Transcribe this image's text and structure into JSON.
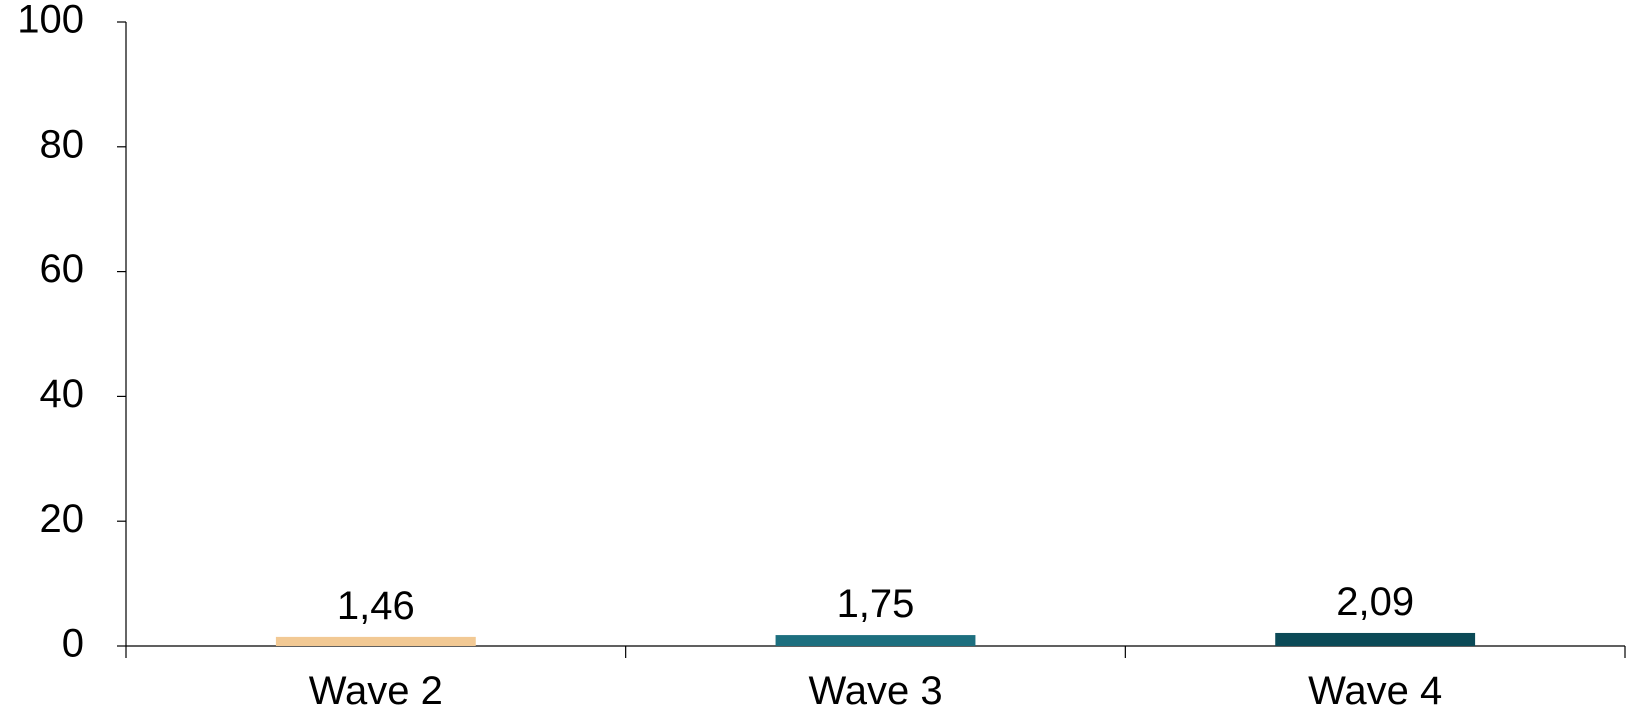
{
  "chart_data": {
    "type": "bar",
    "title": "",
    "xlabel": "",
    "ylabel": "",
    "categories": [
      "Wave 2",
      "Wave 3",
      "Wave 4"
    ],
    "values": [
      1.46,
      1.75,
      2.09
    ],
    "value_labels": [
      "1,46",
      "1,75",
      "2,09"
    ],
    "bar_colors": [
      "#f2c994",
      "#1d6f7f",
      "#0b4a57"
    ],
    "ylim": [
      0,
      100
    ],
    "yticks": [
      0,
      20,
      40,
      60,
      80,
      100
    ],
    "ytick_labels": [
      "0",
      "20",
      "40",
      "60",
      "80",
      "100"
    ],
    "grid": false,
    "legend": "none"
  }
}
